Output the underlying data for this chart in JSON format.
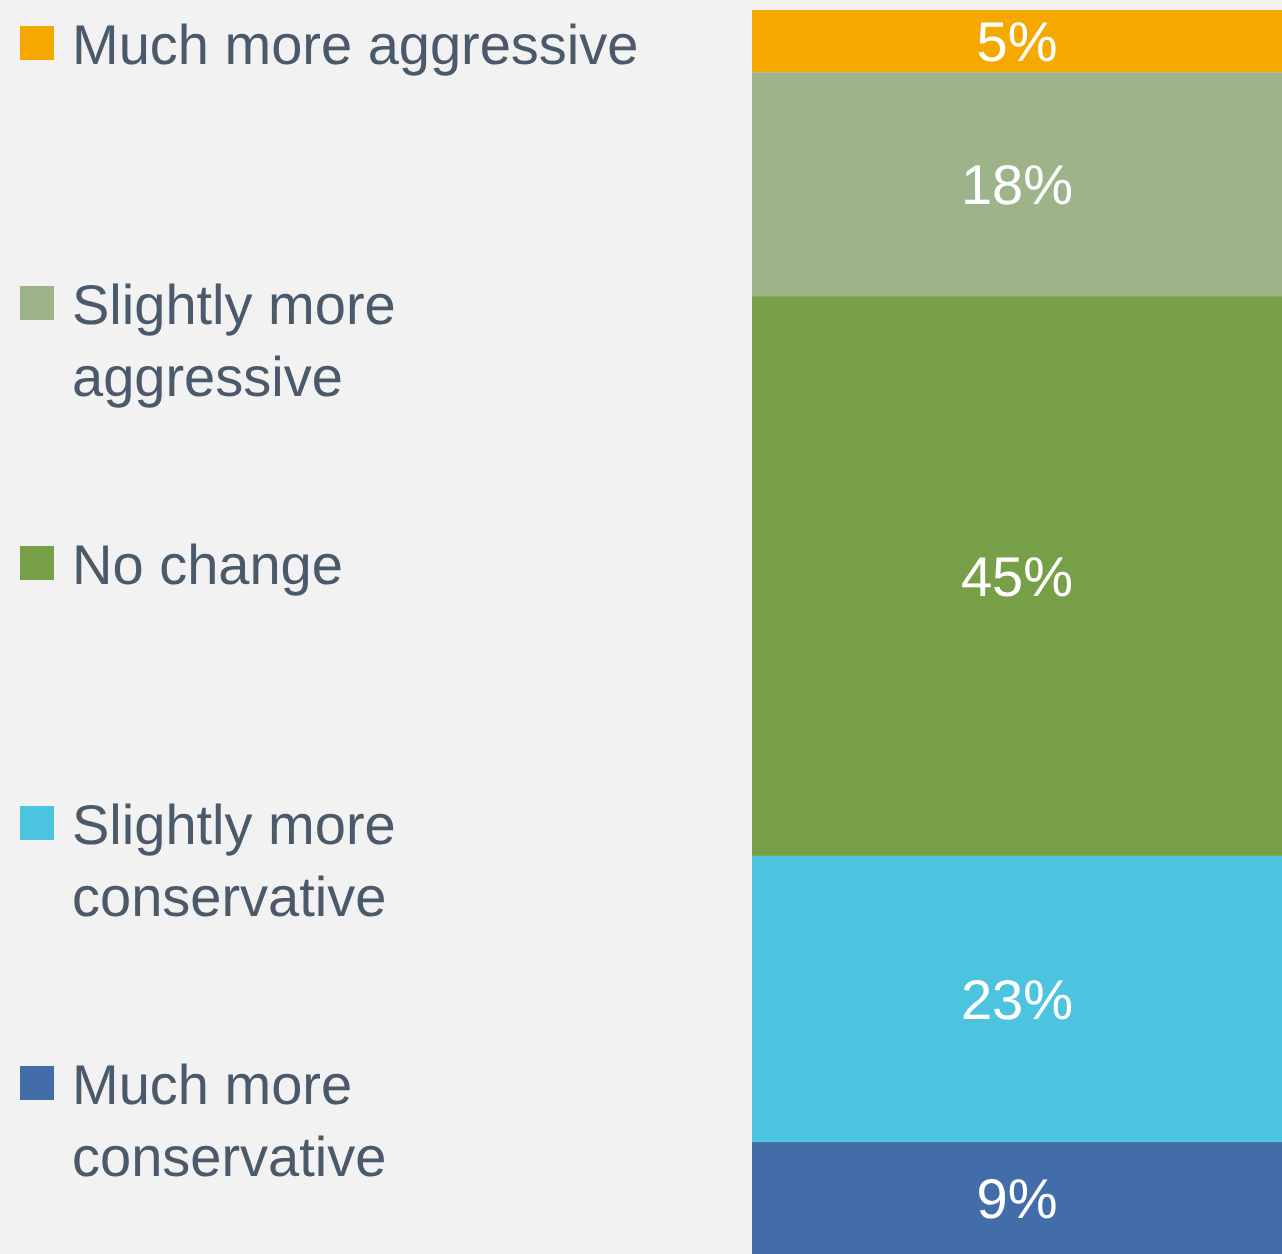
{
  "chart_data": {
    "type": "bar",
    "stacked": true,
    "categories": [
      null
    ],
    "legend": "left",
    "series": [
      {
        "name": "Much more conservative",
        "color": "#426da9",
        "values": [
          9
        ],
        "value_labels": [
          "9%"
        ]
      },
      {
        "name": "Slightly more conservative",
        "color": "#4cc3df",
        "values": [
          23
        ],
        "value_labels": [
          "23%"
        ]
      },
      {
        "name": "No change",
        "color": "#779f48",
        "values": [
          45
        ],
        "value_labels": [
          "45%"
        ]
      },
      {
        "name": "Slightly more aggressive",
        "color": "#9db38a",
        "values": [
          18
        ],
        "value_labels": [
          "18%"
        ]
      },
      {
        "name": "Much more aggressive",
        "color": "#f5a800",
        "values": [
          5
        ],
        "value_labels": [
          "5%"
        ]
      }
    ]
  }
}
